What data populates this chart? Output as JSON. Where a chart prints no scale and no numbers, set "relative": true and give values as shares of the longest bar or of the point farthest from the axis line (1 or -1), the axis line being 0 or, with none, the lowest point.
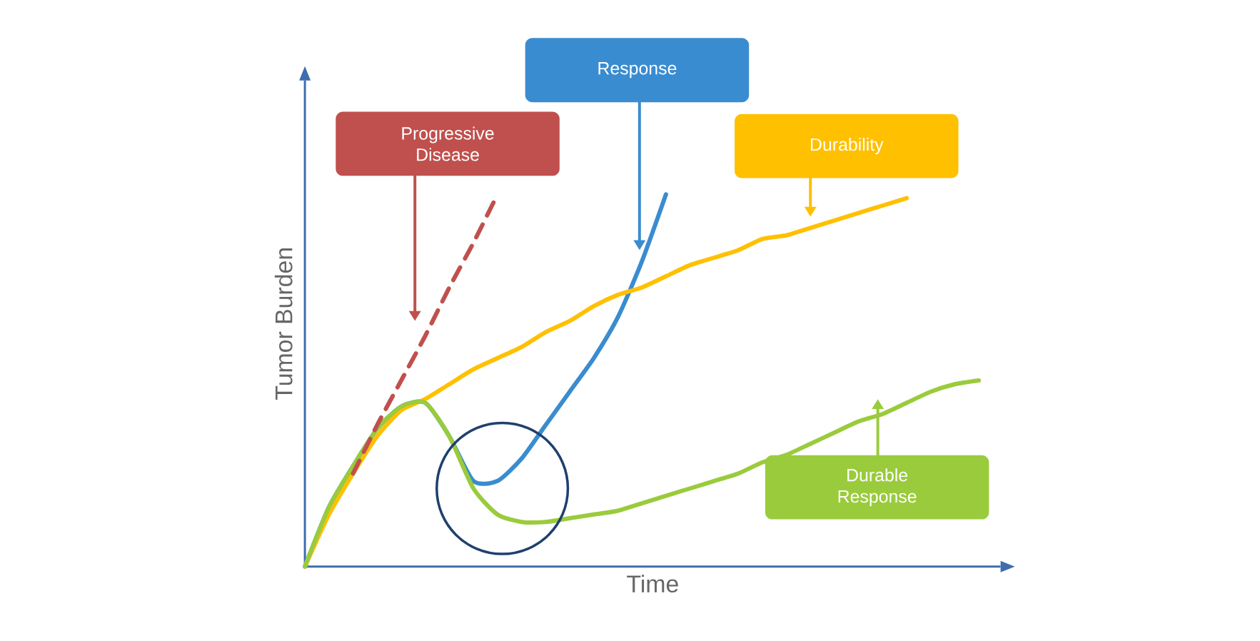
{
  "chart_data": {
    "type": "line",
    "relative": true,
    "xlabel": "Time",
    "ylabel": "Tumor Burden",
    "categories": [
      null,
      null,
      null,
      null,
      null,
      null,
      null,
      null,
      null,
      null,
      null,
      null,
      null,
      null,
      null,
      null,
      null,
      null,
      null,
      null,
      null,
      null,
      null,
      null,
      null,
      null,
      null,
      null,
      null
    ],
    "series": [
      {
        "color": "#c0504d",
        "line_style": "dashed",
        "values": [
          null,
          null,
          0.25,
          0.38,
          0.5,
          0.62,
          0.75,
          0.87,
          1,
          null,
          null,
          null,
          null,
          null,
          null,
          null,
          null,
          null,
          null,
          null,
          null,
          null,
          null,
          null,
          null,
          null,
          null,
          null,
          null
        ]
      },
      {
        "color": "#3a8cd0",
        "values": [
          0,
          0.16,
          0.27,
          0.37,
          0.43,
          0.44,
          0.35,
          0.23,
          0.23,
          0.29,
          0.38,
          0.47,
          0.56,
          0.67,
          0.82,
          1,
          null,
          null,
          null,
          null,
          null,
          null,
          null,
          null,
          null,
          null,
          null,
          null,
          null
        ]
      },
      {
        "color": "#ffc000",
        "values": [
          0,
          0.14,
          0.25,
          0.35,
          0.42,
          0.45,
          0.49,
          0.53,
          0.56,
          0.59,
          0.63,
          0.66,
          0.7,
          0.73,
          0.75,
          0.78,
          0.81,
          0.83,
          0.85,
          0.88,
          0.89,
          0.91,
          0.93,
          0.95,
          0.97,
          0.99,
          null,
          null,
          null
        ]
      },
      {
        "color": "#9acb3c",
        "values": [
          0,
          0.16,
          0.27,
          0.37,
          0.43,
          0.44,
          0.35,
          0.21,
          0.14,
          0.12,
          0.12,
          0.13,
          0.14,
          0.15,
          0.17,
          0.19,
          0.21,
          0.23,
          0.25,
          0.28,
          0.3,
          0.33,
          0.36,
          0.39,
          0.41,
          0.44,
          0.47,
          0.49,
          0.5
        ]
      }
    ],
    "annotations": [
      "Progressive Disease",
      "Response",
      "Durability",
      "Durable Response"
    ]
  }
}
